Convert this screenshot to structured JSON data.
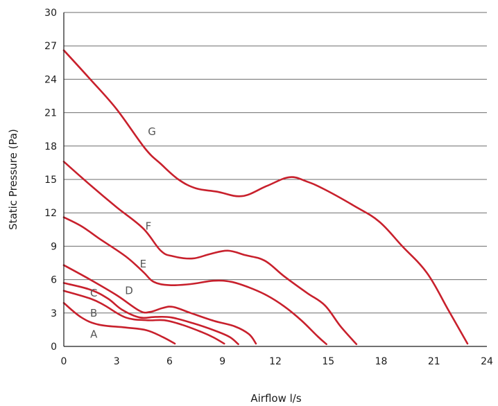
{
  "chart_data": {
    "type": "line",
    "title": "",
    "xlabel": "Airflow l/s",
    "ylabel": "Static Pressure (Pa)",
    "xlim": [
      0,
      24
    ],
    "ylim": [
      0,
      30
    ],
    "x_ticks": [
      0,
      3,
      6,
      9,
      12,
      15,
      18,
      21,
      24
    ],
    "y_ticks": [
      0,
      3,
      6,
      9,
      12,
      15,
      18,
      21,
      24,
      27,
      30
    ],
    "grid": "horizontal",
    "line_color": "#c8202c",
    "series": [
      {
        "name": "A",
        "label_at": [
          1.7,
          1.1
        ],
        "points": [
          [
            0,
            3.9
          ],
          [
            1.0,
            2.6
          ],
          [
            2.0,
            1.95
          ],
          [
            3.5,
            1.7
          ],
          [
            4.7,
            1.45
          ],
          [
            5.6,
            0.85
          ],
          [
            6.3,
            0.25
          ]
        ]
      },
      {
        "name": "B",
        "label_at": [
          1.7,
          3.0
        ],
        "points": [
          [
            0,
            5.0
          ],
          [
            1.5,
            4.3
          ],
          [
            2.3,
            3.7
          ],
          [
            3.5,
            2.6
          ],
          [
            4.7,
            2.35
          ],
          [
            5.7,
            2.35
          ],
          [
            6.7,
            1.95
          ],
          [
            7.8,
            1.3
          ],
          [
            8.5,
            0.8
          ],
          [
            9.1,
            0.25
          ]
        ]
      },
      {
        "name": "C",
        "label_at": [
          1.7,
          4.8
        ],
        "points": [
          [
            0,
            5.7
          ],
          [
            1.5,
            5.1
          ],
          [
            2.5,
            4.3
          ],
          [
            3.3,
            3.3
          ],
          [
            4.3,
            2.6
          ],
          [
            5.2,
            2.65
          ],
          [
            6.1,
            2.6
          ],
          [
            7.3,
            2.1
          ],
          [
            8.6,
            1.4
          ],
          [
            9.4,
            0.85
          ],
          [
            9.9,
            0.2
          ]
        ]
      },
      {
        "name": "D",
        "label_at": [
          3.7,
          5.0
        ],
        "points": [
          [
            0,
            7.3
          ],
          [
            1.5,
            6.0
          ],
          [
            3.0,
            4.6
          ],
          [
            4.3,
            3.2
          ],
          [
            4.9,
            3.1
          ],
          [
            5.6,
            3.45
          ],
          [
            6.2,
            3.55
          ],
          [
            7.2,
            3.0
          ],
          [
            8.5,
            2.3
          ],
          [
            9.7,
            1.8
          ],
          [
            10.5,
            1.1
          ],
          [
            10.9,
            0.25
          ]
        ]
      },
      {
        "name": "E",
        "label_at": [
          4.5,
          7.4
        ],
        "points": [
          [
            0,
            11.6
          ],
          [
            1.0,
            10.8
          ],
          [
            2.0,
            9.7
          ],
          [
            3.5,
            8.1
          ],
          [
            4.5,
            6.7
          ],
          [
            5.1,
            5.8
          ],
          [
            6.0,
            5.5
          ],
          [
            7.2,
            5.6
          ],
          [
            8.5,
            5.9
          ],
          [
            9.5,
            5.8
          ],
          [
            10.5,
            5.3
          ],
          [
            11.5,
            4.6
          ],
          [
            12.5,
            3.6
          ],
          [
            13.5,
            2.3
          ],
          [
            14.4,
            0.9
          ],
          [
            14.9,
            0.2
          ]
        ]
      },
      {
        "name": "F",
        "label_at": [
          4.8,
          10.8
        ],
        "points": [
          [
            0,
            16.6
          ],
          [
            1.5,
            14.5
          ],
          [
            3.0,
            12.5
          ],
          [
            4.5,
            10.6
          ],
          [
            5.5,
            8.6
          ],
          [
            6.2,
            8.1
          ],
          [
            7.3,
            7.9
          ],
          [
            8.3,
            8.3
          ],
          [
            9.3,
            8.6
          ],
          [
            10.3,
            8.2
          ],
          [
            11.4,
            7.7
          ],
          [
            12.5,
            6.3
          ],
          [
            13.8,
            4.8
          ],
          [
            14.8,
            3.7
          ],
          [
            15.7,
            1.8
          ],
          [
            16.6,
            0.2
          ]
        ]
      },
      {
        "name": "G",
        "label_at": [
          5.0,
          19.3
        ],
        "points": [
          [
            0,
            26.6
          ],
          [
            1.5,
            24.0
          ],
          [
            3.0,
            21.3
          ],
          [
            4.6,
            17.8
          ],
          [
            5.5,
            16.4
          ],
          [
            6.5,
            15.0
          ],
          [
            7.5,
            14.2
          ],
          [
            8.7,
            13.9
          ],
          [
            10.1,
            13.5
          ],
          [
            11.5,
            14.4
          ],
          [
            12.8,
            15.2
          ],
          [
            13.8,
            14.8
          ],
          [
            14.8,
            14.1
          ],
          [
            16.5,
            12.6
          ],
          [
            17.9,
            11.2
          ],
          [
            19.2,
            9.0
          ],
          [
            20.6,
            6.6
          ],
          [
            21.8,
            3.3
          ],
          [
            22.9,
            0.25
          ]
        ]
      }
    ]
  }
}
